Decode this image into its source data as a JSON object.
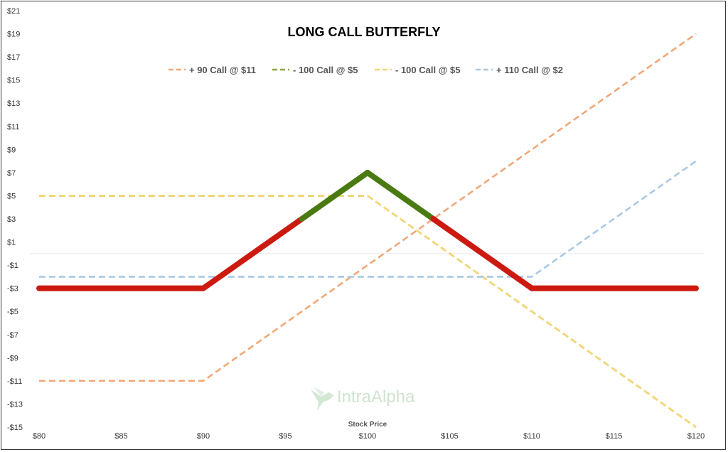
{
  "chart_data": {
    "type": "line",
    "title": "LONG CALL BUTTERFLY",
    "xlabel": "Stock Price",
    "ylabel": "",
    "x": [
      80,
      90,
      100,
      110,
      120
    ],
    "xlim": [
      80,
      120
    ],
    "ylim": [
      -15,
      21
    ],
    "x_ticks": [
      80,
      85,
      90,
      95,
      100,
      105,
      110,
      115,
      120
    ],
    "x_tick_labels": [
      "$80",
      "$85",
      "$90",
      "$95",
      "$100",
      "$105",
      "$110",
      "$115",
      "$120"
    ],
    "y_ticks": [
      -15,
      -13,
      -11,
      -9,
      -7,
      -5,
      -3,
      -1,
      1,
      3,
      5,
      7,
      9,
      11,
      13,
      15,
      17,
      19,
      21
    ],
    "y_tick_labels": [
      "-$15",
      "-$13",
      "-$11",
      "-$9",
      "-$7",
      "-$5",
      "-$3",
      "-$1",
      "$1",
      "$3",
      "$5",
      "$7",
      "$9",
      "$11",
      "$13",
      "$15",
      "$17",
      "$19",
      "$21"
    ],
    "legend_position": "top",
    "series": [
      {
        "name": "+ 90 Call @ $11",
        "color": "#f0a878",
        "style": "dashed",
        "values": [
          -11,
          -11,
          -1,
          9,
          19
        ]
      },
      {
        "name": "- 100 Call @ $5",
        "color": "#8ea644",
        "style": "dashed",
        "values": [
          5,
          5,
          5,
          -5,
          -15
        ]
      },
      {
        "name": "- 100 Call @ $5",
        "color": "#f7d774",
        "style": "dashed",
        "values": [
          5,
          5,
          5,
          -5,
          -15
        ]
      },
      {
        "name": "+ 110 Call @ $2",
        "color": "#a9c9e6",
        "style": "dashed",
        "values": [
          -2,
          -2,
          -2,
          -2,
          8
        ]
      },
      {
        "color": "#cc1a10",
        "profit_color": "#4a7a12",
        "style": "solid-thick",
        "values": [
          -3,
          -3,
          7,
          -3,
          -3
        ]
      }
    ],
    "watermark": "IntraAlpha"
  }
}
